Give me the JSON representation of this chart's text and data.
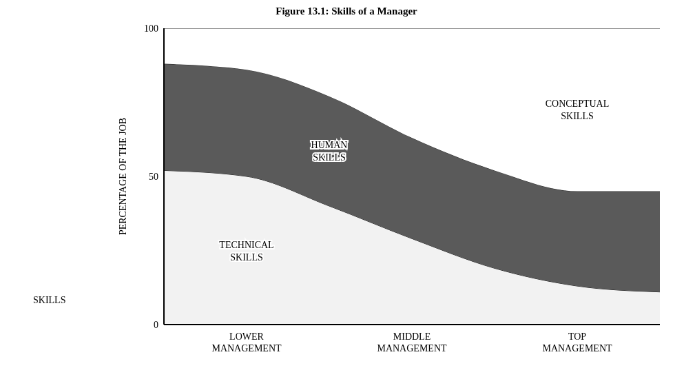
{
  "chart_data": {
    "type": "area",
    "title": "Figure 13.1: Skills of a Manager",
    "ylabel": "PERCENTAGE OF THE JOB",
    "annotations": [
      "SKILLS"
    ],
    "stacked": true,
    "grid": false,
    "legend": false,
    "categories": [
      null,
      "LOWER MANAGEMENT",
      null,
      "MIDDLE MANAGEMENT",
      null,
      "TOP MANAGEMENT",
      null
    ],
    "ylim": [
      0,
      100
    ],
    "yticks": [
      0,
      50,
      100
    ],
    "series": [
      {
        "name": "TECHNICAL SKILLS",
        "color": "#f2f2f2",
        "values": [
          52,
          50,
          40,
          29,
          19,
          13,
          11
        ]
      },
      {
        "name": "HUMAN SKILLS",
        "color": "#5a5a5a",
        "values": [
          36,
          36,
          37,
          34,
          33,
          32,
          34
        ]
      },
      {
        "name": "CONCEPTUAL SKILLS",
        "color": "#ffffff",
        "values": [
          12,
          14,
          23,
          37,
          48,
          55,
          55
        ]
      }
    ]
  }
}
